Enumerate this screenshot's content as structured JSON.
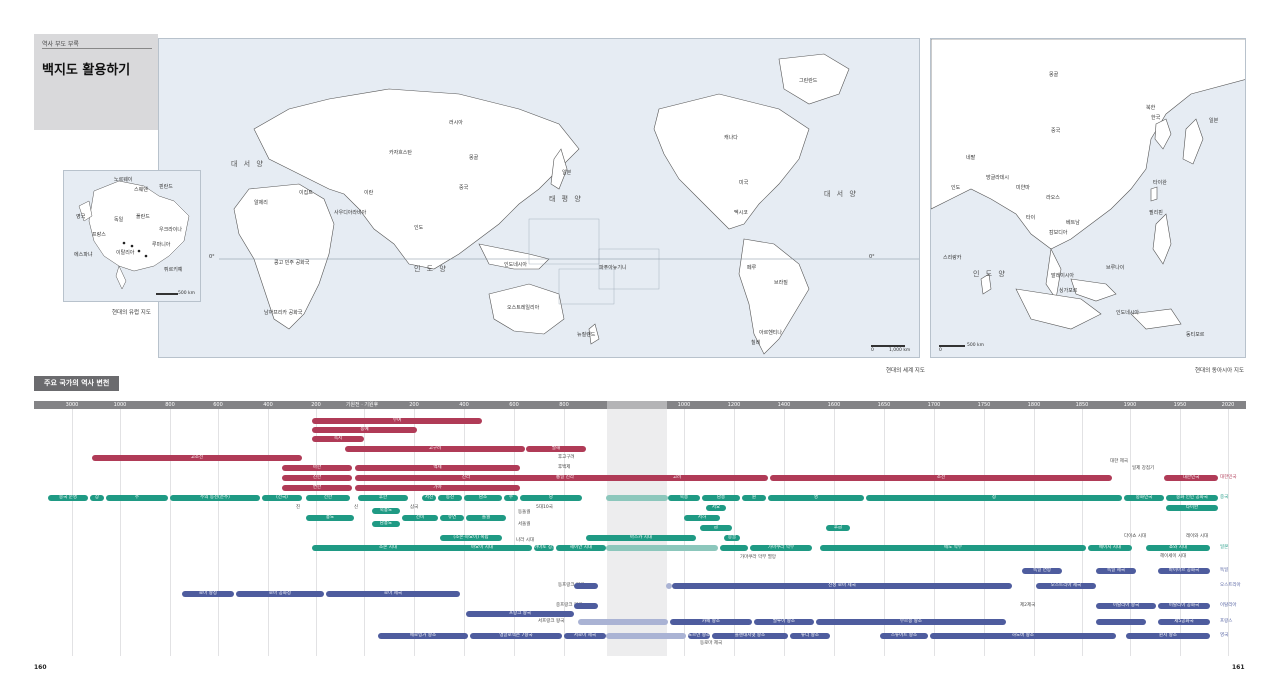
{
  "header": {
    "section_label": "역사 부도 부록",
    "title": "백지도 활용하기"
  },
  "maps": {
    "world_caption": "현대의 세계 지도",
    "asia_caption": "현대의 동아시아 지도",
    "europe_caption": "현대의 유럽 지도",
    "world_scale": "1,000 km",
    "asia_scale": "500 km",
    "europe_scale": "500 km",
    "equator_left": "0°",
    "equator_right": "0°",
    "oceans": {
      "atlantic": "대 서 양",
      "pacific": "태 평 양",
      "indian": "인 도 양",
      "atlantic_east": "대 서 양",
      "indian_asia": "인 도 양"
    },
    "world_labels": [
      "캐나다",
      "미국",
      "멕시코",
      "브라질",
      "아르헨티나",
      "러시아",
      "중국",
      "인도",
      "오스트레일리아",
      "뉴질랜드",
      "남아프리카 공화국",
      "이집트",
      "알제리",
      "콩고 민주 공화국",
      "사우디아라비아",
      "이란",
      "카자흐스탄",
      "몽골",
      "인도네시아",
      "칠레",
      "페루",
      "그린란드",
      "일본",
      "파푸아뉴기니"
    ],
    "asia_labels": [
      "몽골",
      "중국",
      "일본",
      "한국",
      "북한",
      "타이완",
      "네팔",
      "인도",
      "방글라데시",
      "미얀마",
      "라오스",
      "베트남",
      "타이",
      "캄보디아",
      "필리핀",
      "말레이시아",
      "브루나이",
      "싱가포르",
      "인도네시아",
      "스리랑카",
      "동티모르"
    ],
    "europe_labels": [
      "노르웨이",
      "스웨덴",
      "핀란드",
      "영국",
      "독일",
      "폴란드",
      "프랑스",
      "에스파냐",
      "이탈리아",
      "우크라이나",
      "루마니아",
      "튀르키예"
    ]
  },
  "timeline": {
    "heading": "주요 국가의 역사 변천",
    "ticks": [
      "3000",
      "1000",
      "800",
      "600",
      "400",
      "200",
      "기원전 · 기원후",
      "200",
      "400",
      "600",
      "800",
      "1000",
      "1200",
      "1400",
      "1600",
      "1650",
      "1700",
      "1750",
      "1800",
      "1850",
      "1900",
      "1950",
      "2020"
    ],
    "korea": [
      {
        "label": "부여"
      },
      {
        "label": "동예"
      },
      {
        "label": "옥저"
      },
      {
        "label": "고구려"
      },
      {
        "label": "발해"
      },
      {
        "label": "고조선"
      },
      {
        "label": "마한"
      },
      {
        "label": "백제"
      },
      {
        "label": "진한"
      },
      {
        "label": "신라"
      },
      {
        "label": "통일 신라"
      },
      {
        "label": "고려"
      },
      {
        "label": "조선"
      },
      {
        "label": "대한민국"
      },
      {
        "label": "변한"
      },
      {
        "label": "가야"
      }
    ],
    "korea_notes": [
      "후고구려",
      "후백제",
      "대한 제국",
      "일제 강점기"
    ],
    "korea_end": "대한민국",
    "china": [
      {
        "label": "중국 문명"
      },
      {
        "label": "상"
      },
      {
        "label": "주"
      },
      {
        "label": "주의 동천(춘추)"
      },
      {
        "label": "(전국)"
      },
      {
        "label": "전한"
      },
      {
        "label": "후한"
      },
      {
        "label": "서진"
      },
      {
        "label": "동진"
      },
      {
        "label": "남조"
      },
      {
        "label": "수"
      },
      {
        "label": "당"
      },
      {
        "label": "북송"
      },
      {
        "label": "남송"
      },
      {
        "label": "원"
      },
      {
        "label": "명"
      },
      {
        "label": "청"
      },
      {
        "label": "중화민국"
      },
      {
        "label": "중화 인민 공화국"
      },
      {
        "label": "타이완"
      }
    ],
    "china_notes": [
      "진",
      "신",
      "삼국",
      "5대10국",
      "흉노",
      "북흉노",
      "남흉노",
      "선비",
      "유연",
      "돌궐",
      "동돌궐",
      "서돌궐",
      "서요",
      "서하",
      "금",
      "몽골",
      "후금"
    ],
    "china_end": "중국",
    "japan": [
      {
        "label": "조몬 시대"
      },
      {
        "label": "야요이 시대"
      },
      {
        "label": "야마토 정권"
      },
      {
        "label": "헤이안 시대"
      },
      {
        "label": "가마쿠라 막부"
      },
      {
        "label": "무로마치 막부"
      },
      {
        "label": "에도 막부"
      },
      {
        "label": "메이지 시대"
      },
      {
        "label": "쇼와 시대"
      }
    ],
    "japan_notes": [
      "나라 시대",
      "아스카 시대",
      "다이쇼 시대",
      "헤이세이 시대",
      "레이와 시대",
      "가마쿠라 막부 멸망",
      "(조몬·야요이) 복합"
    ],
    "japan_end": "일본",
    "west": [
      {
        "label": "로마 왕정"
      },
      {
        "label": "로마 공화정"
      },
      {
        "label": "로마 제국"
      },
      {
        "label": "신성 로마 제국"
      },
      {
        "label": "서로마 제국"
      },
      {
        "label": "동로마 제국"
      },
      {
        "label": "프랑크 왕국"
      },
      {
        "label": "카페 왕조"
      },
      {
        "label": "발루아 왕조"
      },
      {
        "label": "부르봉 왕조"
      },
      {
        "label": "메로빙거 왕조"
      },
      {
        "label": "앵글로색슨 7왕국"
      },
      {
        "label": "노르만 왕조"
      },
      {
        "label": "플랜태저넷 왕조"
      },
      {
        "label": "튜더 왕조"
      },
      {
        "label": "하노버 왕조"
      },
      {
        "label": "윈저 왕조"
      },
      {
        "label": "독일 연방"
      },
      {
        "label": "독일 제국"
      },
      {
        "label": "바이마르 공화국"
      },
      {
        "label": "오스트리아 제국"
      },
      {
        "label": "이탈리아 왕국"
      },
      {
        "label": "이탈리아 공화국"
      },
      {
        "label": "제2제국"
      },
      {
        "label": "제5공화국"
      },
      {
        "label": "스튜어트 왕조"
      },
      {
        "label": "동프랑크 왕국"
      },
      {
        "label": "중프랑크 왕국"
      },
      {
        "label": "서프랑크 왕국"
      }
    ],
    "west_ends": [
      "독일",
      "오스트리아",
      "이탈리아",
      "프랑스",
      "영국"
    ]
  },
  "page_numbers": {
    "left": "160",
    "right": "161"
  },
  "colors": {
    "korea": "#b03b57",
    "china": "#1f9a84",
    "west": "#4e5c9e",
    "map_water": "#e6ecf3",
    "axis": "#838386"
  }
}
